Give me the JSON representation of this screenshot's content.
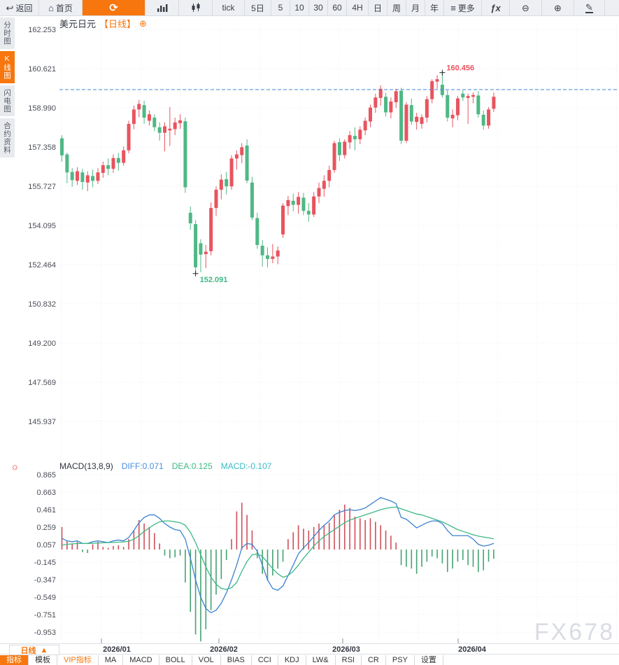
{
  "chart": {
    "title": "美元日元",
    "period_tag": "【日线】",
    "add_icon": "⊕"
  },
  "icons": {
    "indicator_settings": "☼"
  },
  "watermark": "FX678",
  "colors": {
    "accent": "#f7760d",
    "candle_up": "#e8545f",
    "candle_down": "#4fb885",
    "hist_up": "#cf4f5a",
    "hist_down": "#44a271",
    "diff_line": "#3b82d0",
    "dea_line": "#3eb884",
    "price_line": "#3f87d9",
    "annotation_high": "#e8545f",
    "annotation_low": "#3eb884",
    "grid": "#e9ebef",
    "axis_text": "#4a4e57"
  },
  "toolbar": {
    "items": [
      {
        "name": "back-button",
        "icon": "back-arrow-icon",
        "glyph": "↩",
        "label": "返回",
        "w": 56
      },
      {
        "name": "home-button",
        "icon": "home-icon",
        "glyph": "⌂",
        "label": "首页",
        "w": 62
      },
      {
        "name": "refresh-button",
        "icon": "refresh-icon",
        "glyph": "⟳",
        "label": "",
        "w": 90,
        "accent": true
      },
      {
        "name": "timeshare-chart-button",
        "icon": "bar-chart-icon",
        "svg": "bars",
        "label": "",
        "w": 48
      },
      {
        "name": "kline-chart-button",
        "icon": "candlestick-icon",
        "svg": "candles",
        "label": "",
        "w": 48
      },
      {
        "name": "interval-tick-button",
        "label": "tick",
        "w": 46
      },
      {
        "name": "interval-5day-button",
        "label": "5日",
        "w": 38
      },
      {
        "name": "interval-5-button",
        "label": "5",
        "w": 27
      },
      {
        "name": "interval-10-button",
        "label": "10",
        "w": 27
      },
      {
        "name": "interval-30-button",
        "label": "30",
        "w": 27
      },
      {
        "name": "interval-60-button",
        "label": "60",
        "w": 27
      },
      {
        "name": "interval-4h-button",
        "label": "4H",
        "w": 31
      },
      {
        "name": "interval-day-button",
        "label": "日",
        "w": 27
      },
      {
        "name": "interval-week-button",
        "label": "周",
        "w": 27
      },
      {
        "name": "interval-month-button",
        "label": "月",
        "w": 27
      },
      {
        "name": "interval-year-button",
        "label": "年",
        "w": 27
      },
      {
        "name": "more-button",
        "icon": "menu-icon",
        "glyph": "≡",
        "label": "更多",
        "w": 54
      },
      {
        "name": "indicator-fx-button",
        "icon": "fx-icon",
        "glyph": "ƒx",
        "label": "",
        "w": 40,
        "fx": true
      },
      {
        "name": "zoom-out-button",
        "icon": "zoom-out-icon",
        "glyph": "⊖",
        "label": "",
        "w": 46
      },
      {
        "name": "zoom-in-button",
        "icon": "zoom-in-icon",
        "glyph": "⊕",
        "label": "",
        "w": 46
      },
      {
        "name": "draw-button",
        "icon": "pencil-icon",
        "glyph": "✎",
        "label": "",
        "w": 44,
        "pencil": true
      }
    ]
  },
  "sidebar": {
    "tabs": [
      {
        "name": "sidebar-tab-timeshare",
        "label": "分时图",
        "active": false
      },
      {
        "name": "sidebar-tab-kline",
        "label": "K线图",
        "active": true
      },
      {
        "name": "sidebar-tab-lightning",
        "label": "闪电图",
        "active": false
      },
      {
        "name": "sidebar-tab-contract-info",
        "label": "合约资料",
        "active": false
      }
    ]
  },
  "xaxis": {
    "period_button": "日线",
    "period_arrow": "▲"
  },
  "bottom_tabs": [
    {
      "name": "tab-indicators",
      "label": "指标",
      "active": true
    },
    {
      "name": "tab-templates",
      "label": "模板"
    },
    {
      "name": "tab-vip-indicators",
      "label": "VIP指标",
      "vip": true
    },
    {
      "name": "tab-ma",
      "label": "MA"
    },
    {
      "name": "tab-macd",
      "label": "MACD"
    },
    {
      "name": "tab-boll",
      "label": "BOLL"
    },
    {
      "name": "tab-vol",
      "label": "VOL"
    },
    {
      "name": "tab-bias",
      "label": "BIAS"
    },
    {
      "name": "tab-cci",
      "label": "CCI"
    },
    {
      "name": "tab-kdj",
      "label": "KDJ"
    },
    {
      "name": "tab-lwr",
      "label": "LW&"
    },
    {
      "name": "tab-rsi",
      "label": "RSI"
    },
    {
      "name": "tab-cr",
      "label": "CR"
    },
    {
      "name": "tab-psy",
      "label": "PSY"
    },
    {
      "name": "tab-settings",
      "label": "设置"
    }
  ],
  "chart_data": {
    "type": "candlestick+macd",
    "title": "美元日元【日线】",
    "y_axis": {
      "ticks": [
        "162.253",
        "160.621",
        "158.990",
        "157.358",
        "155.727",
        "154.095",
        "152.464",
        "150.832",
        "149.200",
        "147.569",
        "145.937"
      ],
      "top_value": 162.253,
      "value_step": 1.6316
    },
    "macd_axis": {
      "ticks": [
        "0.865",
        "0.663",
        "0.461",
        "0.259",
        "0.057",
        "-0.145",
        "-0.347",
        "-0.549",
        "-0.751",
        "-0.953"
      ],
      "top_value": 0.865,
      "value_step": 0.202
    },
    "x_axis": {
      "months": [
        "2026/01",
        "2026/02",
        "2026/03",
        "2026/04"
      ],
      "month_tick_x": [
        145,
        313,
        490,
        655
      ],
      "month_label_x": [
        167,
        320,
        495,
        675
      ]
    },
    "last_price": 159.747,
    "annotations": {
      "high": {
        "text": "160.456",
        "value": 160.456,
        "candle_index": 74
      },
      "low": {
        "text": "152.091",
        "value": 152.091,
        "candle_index": 26
      }
    },
    "macd_header": {
      "name": "MACD(13,8,9)",
      "diff_label": "DIFF:0.071",
      "dea_label": "DEA:0.125",
      "macd_label": "MACD:-0.107"
    },
    "candles": [
      [
        157.72,
        157.85,
        156.75,
        157.01
      ],
      [
        157.05,
        157.12,
        155.85,
        156.3
      ],
      [
        156.32,
        156.48,
        155.7,
        155.98
      ],
      [
        155.95,
        156.52,
        155.78,
        156.35
      ],
      [
        156.3,
        156.45,
        155.58,
        155.9
      ],
      [
        155.88,
        156.35,
        155.52,
        156.18
      ],
      [
        156.15,
        156.42,
        155.68,
        155.95
      ],
      [
        155.95,
        156.48,
        155.82,
        156.3
      ],
      [
        156.28,
        156.75,
        156.08,
        156.6
      ],
      [
        156.6,
        156.88,
        156.18,
        156.45
      ],
      [
        156.45,
        157.05,
        156.28,
        156.9
      ],
      [
        156.9,
        157.12,
        156.38,
        156.7
      ],
      [
        156.7,
        157.38,
        156.58,
        157.22
      ],
      [
        157.22,
        158.45,
        157.1,
        158.32
      ],
      [
        158.32,
        159.08,
        158.1,
        158.92
      ],
      [
        158.92,
        159.32,
        158.6,
        159.15
      ],
      [
        159.1,
        159.28,
        158.32,
        158.58
      ],
      [
        158.45,
        158.88,
        158.25,
        158.72
      ],
      [
        158.58,
        158.72,
        158.02,
        158.18
      ],
      [
        158.18,
        158.38,
        157.62,
        157.95
      ],
      [
        157.95,
        158.38,
        157.18,
        158.22
      ],
      [
        158.05,
        159.02,
        157.4,
        158.12
      ],
      [
        158.1,
        158.58,
        157.85,
        158.38
      ],
      [
        158.35,
        158.72,
        158.12,
        158.47
      ],
      [
        158.43,
        158.58,
        155.45,
        155.68
      ],
      [
        154.62,
        154.88,
        153.92,
        154.18
      ],
      [
        154.15,
        154.32,
        152.091,
        152.35
      ],
      [
        153.35,
        153.52,
        152.15,
        152.88
      ],
      [
        152.9,
        153.28,
        152.32,
        153.0
      ],
      [
        153.02,
        155.05,
        152.85,
        154.82
      ],
      [
        154.82,
        155.72,
        154.48,
        155.58
      ],
      [
        155.58,
        156.22,
        155.18,
        156.0
      ],
      [
        156.02,
        156.32,
        155.38,
        155.72
      ],
      [
        155.72,
        157.02,
        155.58,
        156.88
      ],
      [
        156.88,
        157.22,
        156.42,
        157.05
      ],
      [
        157.02,
        157.52,
        156.68,
        157.35
      ],
      [
        157.42,
        157.68,
        155.85,
        155.96
      ],
      [
        155.88,
        156.12,
        154.32,
        154.42
      ],
      [
        154.4,
        154.62,
        153.12,
        153.28
      ],
      [
        153.25,
        153.48,
        152.38,
        152.85
      ],
      [
        152.85,
        153.18,
        152.35,
        152.7
      ],
      [
        152.7,
        153.32,
        152.52,
        152.8
      ],
      [
        152.8,
        153.22,
        152.48,
        153.05
      ],
      [
        153.72,
        155.02,
        153.58,
        154.92
      ],
      [
        154.9,
        155.32,
        154.52,
        155.15
      ],
      [
        155.12,
        155.42,
        154.68,
        154.95
      ],
      [
        154.95,
        155.48,
        154.58,
        155.28
      ],
      [
        155.25,
        155.45,
        154.52,
        154.7
      ],
      [
        154.7,
        155.02,
        154.25,
        154.55
      ],
      [
        154.55,
        155.48,
        154.45,
        155.3
      ],
      [
        155.3,
        155.88,
        155.02,
        155.65
      ],
      [
        155.62,
        156.18,
        155.28,
        155.95
      ],
      [
        155.95,
        156.58,
        155.68,
        156.4
      ],
      [
        156.4,
        157.62,
        156.28,
        157.52
      ],
      [
        157.56,
        157.72,
        156.78,
        157.02
      ],
      [
        157.02,
        157.68,
        156.88,
        157.58
      ],
      [
        157.55,
        158.02,
        157.28,
        157.85
      ],
      [
        157.82,
        158.18,
        157.22,
        157.68
      ],
      [
        157.68,
        158.22,
        157.48,
        158.08
      ],
      [
        158.05,
        158.58,
        157.85,
        158.45
      ],
      [
        158.42,
        159.12,
        158.18,
        159.0
      ],
      [
        159.0,
        159.58,
        158.78,
        159.42
      ],
      [
        159.4,
        159.92,
        159.08,
        159.78
      ],
      [
        159.45,
        159.62,
        158.62,
        158.8
      ],
      [
        158.8,
        159.42,
        158.55,
        159.25
      ],
      [
        159.22,
        159.78,
        158.98,
        159.68
      ],
      [
        159.7,
        159.82,
        157.48,
        157.62
      ],
      [
        157.62,
        159.22,
        157.52,
        159.12
      ],
      [
        159.1,
        159.38,
        158.28,
        158.42
      ],
      [
        158.4,
        158.78,
        158.08,
        158.62
      ],
      [
        158.32,
        158.72,
        158.12,
        158.6
      ],
      [
        158.58,
        159.48,
        158.38,
        159.35
      ],
      [
        159.35,
        160.18,
        159.18,
        160.1
      ],
      [
        160.08,
        160.35,
        159.78,
        160.18
      ],
      [
        159.95,
        160.456,
        159.42,
        159.52
      ],
      [
        159.52,
        159.72,
        158.42,
        158.58
      ],
      [
        158.55,
        158.92,
        158.18,
        158.7
      ],
      [
        158.68,
        159.48,
        158.48,
        159.38
      ],
      [
        159.58,
        159.72,
        159.28,
        159.42
      ],
      [
        159.4,
        159.58,
        158.32,
        159.48
      ],
      [
        159.45,
        159.62,
        159.18,
        159.52
      ],
      [
        159.5,
        159.68,
        158.58,
        158.72
      ],
      [
        158.7,
        158.88,
        158.08,
        158.25
      ],
      [
        158.25,
        159.02,
        158.12,
        158.92
      ],
      [
        158.95,
        159.62,
        158.82,
        159.45
      ]
    ],
    "diff": [
      0.13,
      0.1,
      0.09,
      0.1,
      0.07,
      0.07,
      0.09,
      0.1,
      0.09,
      0.08,
      0.1,
      0.11,
      0.1,
      0.14,
      0.22,
      0.31,
      0.37,
      0.4,
      0.4,
      0.36,
      0.3,
      0.26,
      0.23,
      0.22,
      0.12,
      -0.1,
      -0.35,
      -0.55,
      -0.68,
      -0.73,
      -0.7,
      -0.62,
      -0.5,
      -0.35,
      -0.18,
      0.02,
      0.07,
      0.06,
      -0.02,
      -0.18,
      -0.35,
      -0.45,
      -0.47,
      -0.42,
      -0.3,
      -0.18,
      -0.05,
      0.02,
      0.08,
      0.15,
      0.22,
      0.28,
      0.33,
      0.4,
      0.43,
      0.45,
      0.46,
      0.45,
      0.46,
      0.48,
      0.52,
      0.56,
      0.6,
      0.58,
      0.56,
      0.53,
      0.37,
      0.35,
      0.3,
      0.25,
      0.28,
      0.31,
      0.33,
      0.33,
      0.3,
      0.22,
      0.16,
      0.16,
      0.16,
      0.16,
      0.12,
      0.06,
      0.04,
      0.05,
      0.071
    ],
    "dea": [
      0.05,
      0.06,
      0.065,
      0.07,
      0.07,
      0.07,
      0.072,
      0.075,
      0.078,
      0.08,
      0.082,
      0.085,
      0.088,
      0.095,
      0.12,
      0.16,
      0.21,
      0.25,
      0.29,
      0.32,
      0.33,
      0.33,
      0.32,
      0.31,
      0.28,
      0.2,
      0.08,
      -0.06,
      -0.2,
      -0.32,
      -0.4,
      -0.45,
      -0.46,
      -0.44,
      -0.38,
      -0.25,
      -0.14,
      -0.06,
      -0.05,
      -0.08,
      -0.15,
      -0.22,
      -0.28,
      -0.32,
      -0.3,
      -0.25,
      -0.18,
      -0.1,
      -0.03,
      0.04,
      0.1,
      0.15,
      0.19,
      0.23,
      0.27,
      0.31,
      0.34,
      0.36,
      0.38,
      0.4,
      0.42,
      0.44,
      0.46,
      0.475,
      0.485,
      0.49,
      0.47,
      0.45,
      0.43,
      0.41,
      0.4,
      0.38,
      0.36,
      0.34,
      0.32,
      0.29,
      0.26,
      0.23,
      0.21,
      0.19,
      0.17,
      0.155,
      0.145,
      0.135,
      0.125
    ],
    "hist": [
      0.26,
      0.1,
      0.07,
      0.09,
      -0.03,
      -0.04,
      0.06,
      0.09,
      0.03,
      0.02,
      0.04,
      0.05,
      0.03,
      0.12,
      0.22,
      0.34,
      0.3,
      0.26,
      0.19,
      0.07,
      -0.07,
      -0.1,
      -0.09,
      -0.07,
      -0.38,
      -0.72,
      -0.98,
      -1.06,
      -0.92,
      -0.7,
      -0.52,
      -0.34,
      -0.12,
      0.12,
      0.44,
      0.54,
      0.4,
      0.22,
      -0.1,
      -0.28,
      -0.36,
      -0.3,
      -0.22,
      -0.14,
      0.12,
      0.2,
      0.28,
      0.24,
      0.22,
      0.26,
      0.3,
      0.28,
      0.31,
      0.4,
      0.46,
      0.52,
      0.48,
      0.38,
      0.36,
      0.34,
      0.36,
      0.32,
      0.28,
      0.22,
      0.16,
      0.08,
      -0.18,
      -0.2,
      -0.22,
      -0.28,
      -0.2,
      -0.14,
      -0.08,
      -0.1,
      -0.16,
      -0.26,
      -0.22,
      -0.14,
      -0.12,
      -0.18,
      -0.2,
      -0.26,
      -0.24,
      -0.14,
      -0.107
    ]
  }
}
